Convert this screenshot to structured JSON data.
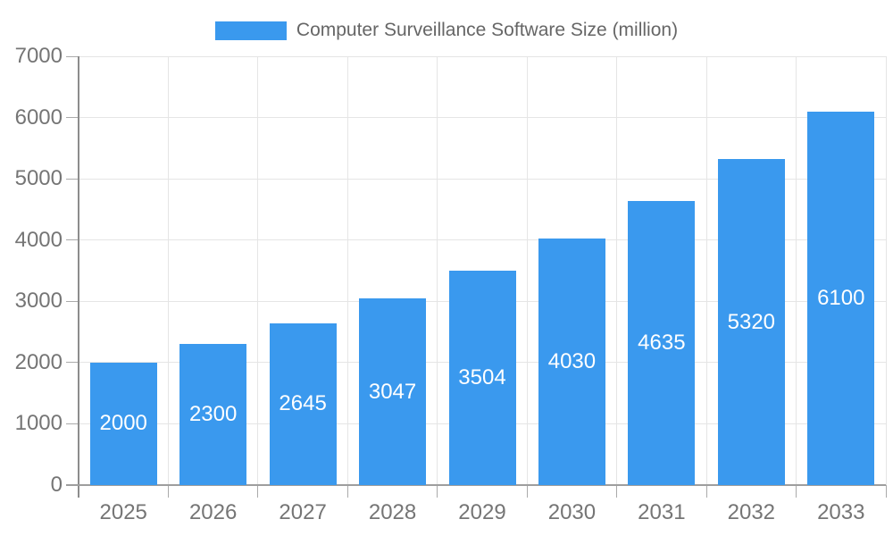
{
  "legend": {
    "label": "Computer Surveillance Software Size (million)"
  },
  "colors": {
    "bar": "#3A99EE",
    "grid": "#E5E5E5",
    "axis_x": "#9E9E9E",
    "axis_y": "#8C8C8C",
    "tick_mark": "#AAAAAA",
    "tick_text": "#757575",
    "bar_label": "#FFFFFF",
    "legend_text": "#666666",
    "background": "#FFFFFF"
  },
  "chart_data": {
    "type": "bar",
    "title": "Computer Surveillance Software Size (million)",
    "categories": [
      "2025",
      "2026",
      "2027",
      "2028",
      "2029",
      "2030",
      "2031",
      "2032",
      "2033"
    ],
    "values": [
      2000,
      2300,
      2645,
      3047,
      3504,
      4030,
      4635,
      5320,
      6100
    ],
    "xlabel": "",
    "ylabel": "",
    "ylim": [
      0,
      7000
    ],
    "yticks": [
      0,
      1000,
      2000,
      3000,
      4000,
      5000,
      6000,
      7000
    ],
    "grid": true,
    "legend_position": "top-center",
    "bar_label_position": "inside-center"
  }
}
